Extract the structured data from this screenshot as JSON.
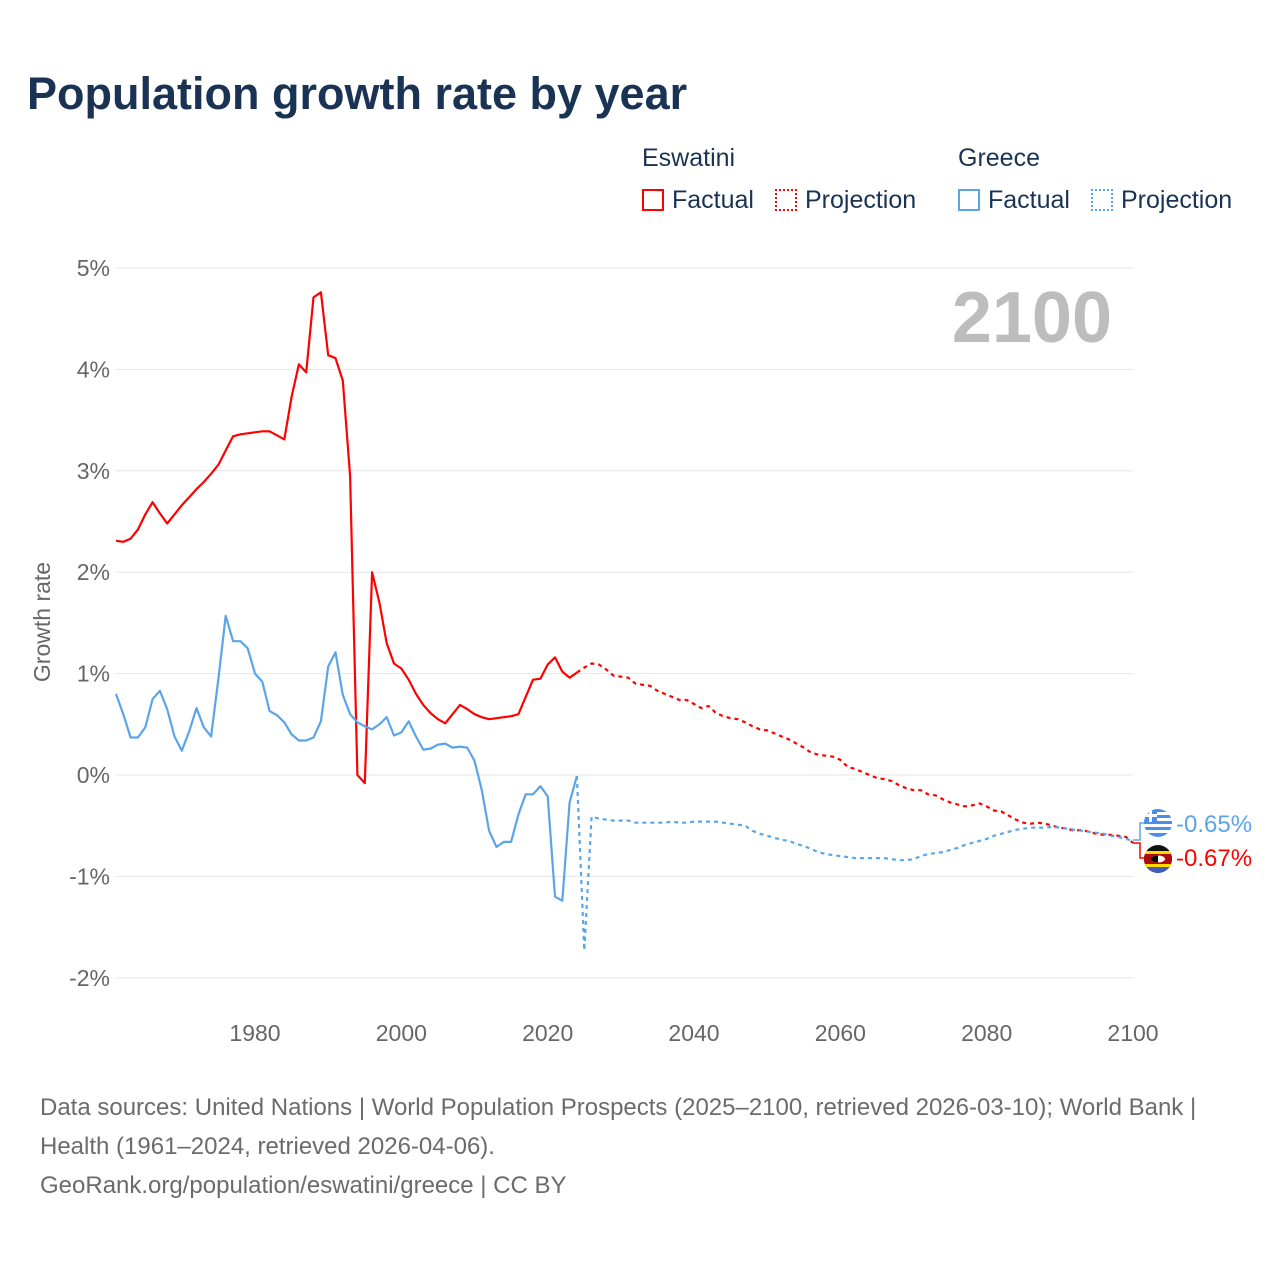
{
  "title": "Population growth rate by year",
  "legend": {
    "groups": [
      {
        "name": "Eswatini",
        "color": "#ff0000",
        "factual": "Factual",
        "projection": "Projection"
      },
      {
        "name": "Greece",
        "color": "#5aa5ea",
        "factual": "Factual",
        "projection": "Projection"
      }
    ]
  },
  "year_watermark": "2100",
  "end_labels": {
    "greece": "-0.65%",
    "eswatini": "-0.67%"
  },
  "footer": {
    "sources": "Data sources: United Nations | World Population Prospects (2025–2100, retrieved 2026-03-10); World Bank | Health (1961–2024, retrieved 2026-04-06).",
    "credit": "GeoRank.org/population/eswatini/greece | CC BY"
  },
  "chart_data": {
    "type": "line",
    "title": "Population growth rate by year",
    "xlabel": "",
    "ylabel": "Growth rate",
    "xlim": [
      1961,
      2100
    ],
    "ylim": [
      -2.3,
      5.2
    ],
    "x_ticks": [
      1980,
      2000,
      2020,
      2040,
      2060,
      2080,
      2100
    ],
    "x_tick_labels": [
      "1980",
      "2000",
      "2020",
      "2040",
      "2060",
      "2080",
      "2100"
    ],
    "y_ticks": [
      -2,
      -1,
      0,
      1,
      2,
      3,
      4,
      5
    ],
    "y_tick_labels": [
      "-2%",
      "-1%",
      "0%",
      "1%",
      "2%",
      "3%",
      "4%",
      "5%"
    ],
    "grid": true,
    "legend_position": "top-right",
    "series": [
      {
        "name": "Eswatini Factual",
        "color": "#ff0000",
        "dashed": false,
        "x_start": 1961,
        "values": [
          2.31,
          2.3,
          2.33,
          2.42,
          2.57,
          2.69,
          2.58,
          2.48,
          2.57,
          2.66,
          2.74,
          2.82,
          2.89,
          2.97,
          3.06,
          3.2,
          3.34,
          3.36,
          3.37,
          3.38,
          3.39,
          3.39,
          3.35,
          3.31,
          3.73,
          4.05,
          3.97,
          4.71,
          4.76,
          4.14,
          4.11,
          3.89,
          2.95,
          0.0,
          -0.08,
          2.0,
          1.7,
          1.3,
          1.1,
          1.05,
          0.94,
          0.8,
          0.69,
          0.61,
          0.55,
          0.51,
          0.6,
          0.69,
          0.65,
          0.6,
          0.57,
          0.55,
          0.56,
          0.57,
          0.58,
          0.6,
          0.77,
          0.94,
          0.95,
          1.09,
          1.16,
          1.02,
          0.96,
          1.01
        ]
      },
      {
        "name": "Eswatini Projection",
        "color": "#ff0000",
        "dashed": true,
        "x_start": 2024,
        "values": [
          1.01,
          1.06,
          1.1,
          1.09,
          1.04,
          0.98,
          0.97,
          0.96,
          0.9,
          0.89,
          0.88,
          0.83,
          0.8,
          0.77,
          0.74,
          0.74,
          0.7,
          0.66,
          0.68,
          0.61,
          0.58,
          0.56,
          0.55,
          0.52,
          0.48,
          0.45,
          0.44,
          0.41,
          0.38,
          0.35,
          0.31,
          0.27,
          0.22,
          0.2,
          0.19,
          0.18,
          0.15,
          0.08,
          0.06,
          0.03,
          0.0,
          -0.03,
          -0.04,
          -0.06,
          -0.1,
          -0.13,
          -0.15,
          -0.15,
          -0.19,
          -0.2,
          -0.24,
          -0.27,
          -0.29,
          -0.31,
          -0.3,
          -0.28,
          -0.31,
          -0.35,
          -0.36,
          -0.4,
          -0.44,
          -0.47,
          -0.48,
          -0.47,
          -0.48,
          -0.5,
          -0.52,
          -0.53,
          -0.55,
          -0.54,
          -0.56,
          -0.58,
          -0.59,
          -0.59,
          -0.6,
          -0.61,
          -0.67
        ]
      },
      {
        "name": "Greece Factual",
        "color": "#5aa5ea",
        "dashed": false,
        "x_start": 1961,
        "values": [
          0.8,
          0.6,
          0.37,
          0.37,
          0.47,
          0.75,
          0.83,
          0.65,
          0.38,
          0.24,
          0.43,
          0.66,
          0.47,
          0.38,
          0.95,
          1.57,
          1.32,
          1.32,
          1.25,
          1.0,
          0.92,
          0.63,
          0.59,
          0.52,
          0.4,
          0.34,
          0.34,
          0.37,
          0.53,
          1.07,
          1.21,
          0.79,
          0.6,
          0.52,
          0.48,
          0.45,
          0.5,
          0.57,
          0.39,
          0.42,
          0.53,
          0.38,
          0.25,
          0.26,
          0.3,
          0.31,
          0.27,
          0.28,
          0.27,
          0.14,
          -0.15,
          -0.55,
          -0.71,
          -0.66,
          -0.66,
          -0.39,
          -0.19,
          -0.19,
          -0.11,
          -0.21,
          -1.2,
          -1.24,
          -0.27,
          -0.01
        ]
      },
      {
        "name": "Greece Projection",
        "color": "#5aa5ea",
        "dashed": true,
        "x_start": 2024,
        "values": [
          -0.01,
          -1.73,
          -0.41,
          -0.43,
          -0.44,
          -0.45,
          -0.45,
          -0.45,
          -0.47,
          -0.47,
          -0.47,
          -0.47,
          -0.47,
          -0.46,
          -0.47,
          -0.47,
          -0.46,
          -0.46,
          -0.46,
          -0.46,
          -0.47,
          -0.48,
          -0.49,
          -0.5,
          -0.55,
          -0.58,
          -0.6,
          -0.62,
          -0.64,
          -0.65,
          -0.68,
          -0.7,
          -0.73,
          -0.76,
          -0.78,
          -0.79,
          -0.8,
          -0.81,
          -0.82,
          -0.82,
          -0.82,
          -0.82,
          -0.82,
          -0.83,
          -0.84,
          -0.84,
          -0.83,
          -0.8,
          -0.78,
          -0.77,
          -0.76,
          -0.74,
          -0.72,
          -0.69,
          -0.67,
          -0.65,
          -0.63,
          -0.6,
          -0.58,
          -0.56,
          -0.54,
          -0.53,
          -0.52,
          -0.52,
          -0.52,
          -0.51,
          -0.52,
          -0.53,
          -0.54,
          -0.55,
          -0.56,
          -0.57,
          -0.58,
          -0.6,
          -0.61,
          -0.63,
          -0.65
        ]
      }
    ]
  }
}
